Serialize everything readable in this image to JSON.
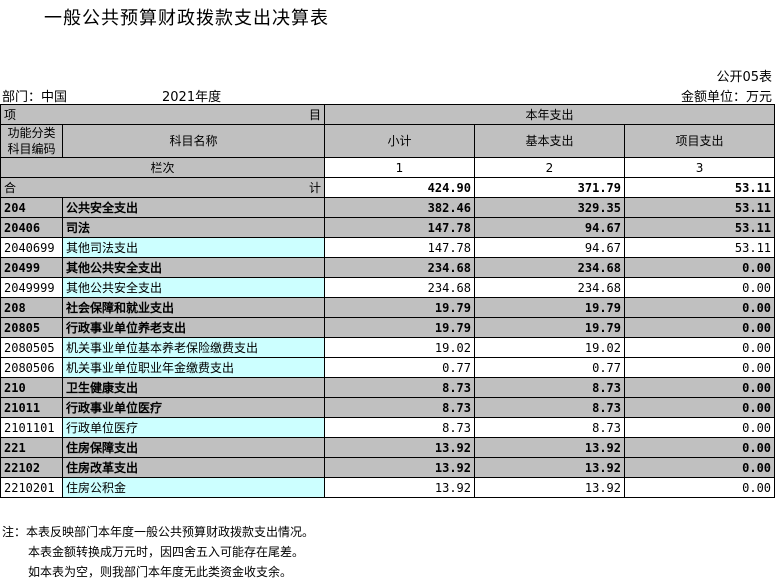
{
  "title": "一般公共预算财政拨款支出决算表",
  "form_code": "公开05表",
  "department": "部门：中国",
  "year": "2021年度",
  "unit": "金额单位：万元",
  "header": {
    "item_left": "项",
    "item_right": "目",
    "expenditure_group": "本年支出",
    "code_col": "功能分类\n科目编码",
    "name_col": "科目名称",
    "subtotal": "小计",
    "basic": "基本支出",
    "project": "项目支出",
    "column_order_label": "栏次",
    "col_nums": [
      "1",
      "2",
      "3"
    ]
  },
  "total_row": {
    "left": "合",
    "right": "计",
    "subtotal": "424.90",
    "basic": "371.79",
    "project": "53.11"
  },
  "rows": [
    {
      "code": "204",
      "name": "公共安全支出",
      "subtotal": "382.46",
      "basic": "329.35",
      "project": "53.11",
      "level": "category"
    },
    {
      "code": "20406",
      "name": "司法",
      "subtotal": "147.78",
      "basic": "94.67",
      "project": "53.11",
      "level": "category"
    },
    {
      "code": "2040699",
      "name": "其他司法支出",
      "subtotal": "147.78",
      "basic": "94.67",
      "project": "53.11",
      "level": "item"
    },
    {
      "code": "20499",
      "name": "其他公共安全支出",
      "subtotal": "234.68",
      "basic": "234.68",
      "project": "0.00",
      "level": "category"
    },
    {
      "code": "2049999",
      "name": "其他公共安全支出",
      "subtotal": "234.68",
      "basic": "234.68",
      "project": "0.00",
      "level": "item"
    },
    {
      "code": "208",
      "name": "社会保障和就业支出",
      "subtotal": "19.79",
      "basic": "19.79",
      "project": "0.00",
      "level": "category"
    },
    {
      "code": "20805",
      "name": "行政事业单位养老支出",
      "subtotal": "19.79",
      "basic": "19.79",
      "project": "0.00",
      "level": "category"
    },
    {
      "code": "2080505",
      "name": "机关事业单位基本养老保险缴费支出",
      "subtotal": "19.02",
      "basic": "19.02",
      "project": "0.00",
      "level": "item"
    },
    {
      "code": "2080506",
      "name": "机关事业单位职业年金缴费支出",
      "subtotal": "0.77",
      "basic": "0.77",
      "project": "0.00",
      "level": "item"
    },
    {
      "code": "210",
      "name": "卫生健康支出",
      "subtotal": "8.73",
      "basic": "8.73",
      "project": "0.00",
      "level": "category"
    },
    {
      "code": "21011",
      "name": "行政事业单位医疗",
      "subtotal": "8.73",
      "basic": "8.73",
      "project": "0.00",
      "level": "category"
    },
    {
      "code": "2101101",
      "name": "行政单位医疗",
      "subtotal": "8.73",
      "basic": "8.73",
      "project": "0.00",
      "level": "item"
    },
    {
      "code": "221",
      "name": "住房保障支出",
      "subtotal": "13.92",
      "basic": "13.92",
      "project": "0.00",
      "level": "category"
    },
    {
      "code": "22102",
      "name": "住房改革支出",
      "subtotal": "13.92",
      "basic": "13.92",
      "project": "0.00",
      "level": "category"
    },
    {
      "code": "2210201",
      "name": "住房公积金",
      "subtotal": "13.92",
      "basic": "13.92",
      "project": "0.00",
      "level": "item"
    }
  ],
  "notes": [
    "注：本表反映部门本年度一般公共预算财政拨款支出情况。",
    "本表金额转换成万元时，因四舍五入可能存在尾差。",
    "如本表为空，则我部门本年度无此类资金收支余。"
  ]
}
